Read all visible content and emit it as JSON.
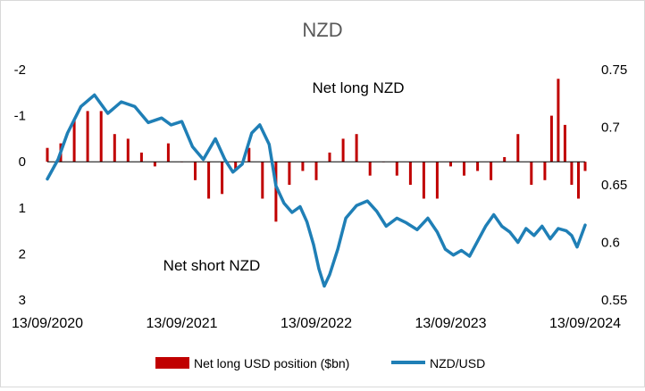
{
  "chart_data": {
    "type": "bar",
    "title": "NZD",
    "colors": {
      "bar": "#c00000",
      "line": "#1f7fb6"
    },
    "left_axis": {
      "ticks": [
        -2,
        -1,
        0,
        1,
        2,
        3
      ],
      "tick_labels": [
        "-2",
        "-1",
        "0",
        "1",
        "2",
        "3"
      ],
      "range": [
        -2.0,
        3.0
      ],
      "inverted": true
    },
    "right_axis": {
      "ticks": [
        0.55,
        0.6,
        0.65,
        0.7,
        0.75
      ],
      "tick_labels": [
        "0.55",
        "0.6",
        "0.65",
        "0.7",
        "0.75"
      ],
      "range": [
        0.55,
        0.75
      ]
    },
    "x_ticks": [
      "13/09/2020",
      "13/09/2021",
      "13/09/2022",
      "13/09/2023",
      "13/09/2024"
    ],
    "x_range": [
      2020.7,
      2024.7
    ],
    "annotations": [
      "Net long NZD",
      "Net short NZD"
    ],
    "legend_position": "bottom",
    "series": [
      {
        "name": "Net long USD position ($bn)",
        "kind": "bar",
        "axis": "left",
        "x": [
          2020.7,
          2020.8,
          2020.9,
          2021.0,
          2021.1,
          2021.2,
          2021.3,
          2021.4,
          2021.5,
          2021.6,
          2021.7,
          2021.8,
          2021.9,
          2022.0,
          2022.1,
          2022.2,
          2022.3,
          2022.4,
          2022.5,
          2022.6,
          2022.7,
          2022.8,
          2022.9,
          2023.0,
          2023.1,
          2023.2,
          2023.3,
          2023.4,
          2023.5,
          2023.6,
          2023.7,
          2023.8,
          2023.9,
          2024.0,
          2024.1,
          2024.2,
          2024.3,
          2024.4,
          2024.45,
          2024.5,
          2024.55,
          2024.6,
          2024.65,
          2024.7
        ],
        "values": [
          -0.3,
          -0.4,
          -0.9,
          -1.1,
          -1.1,
          -0.6,
          -0.5,
          -0.2,
          0.1,
          -0.4,
          0.0,
          0.4,
          0.8,
          0.7,
          0.2,
          -0.3,
          0.8,
          1.3,
          0.5,
          0.2,
          0.4,
          -0.2,
          -0.5,
          -0.6,
          0.3,
          0.0,
          0.3,
          0.5,
          0.8,
          0.8,
          0.1,
          0.3,
          0.2,
          0.4,
          -0.1,
          -0.6,
          0.5,
          0.4,
          -1.0,
          -1.8,
          -0.8,
          0.5,
          0.8,
          0.2
        ]
      },
      {
        "name": "NZD/USD",
        "kind": "line",
        "axis": "right",
        "x": [
          2020.7,
          2020.78,
          2020.85,
          2020.95,
          2021.05,
          2021.15,
          2021.25,
          2021.35,
          2021.45,
          2021.55,
          2021.62,
          2021.7,
          2021.78,
          2021.86,
          2021.95,
          2022.02,
          2022.08,
          2022.15,
          2022.22,
          2022.28,
          2022.35,
          2022.4,
          2022.46,
          2022.52,
          2022.58,
          2022.63,
          2022.68,
          2022.72,
          2022.76,
          2022.8,
          2022.86,
          2022.92,
          2023.0,
          2023.08,
          2023.15,
          2023.22,
          2023.3,
          2023.37,
          2023.45,
          2023.53,
          2023.6,
          2023.66,
          2023.72,
          2023.78,
          2023.84,
          2023.9,
          2023.96,
          2024.02,
          2024.08,
          2024.14,
          2024.2,
          2024.26,
          2024.32,
          2024.38,
          2024.44,
          2024.5,
          2024.56,
          2024.6,
          2024.64,
          2024.7
        ],
        "values": [
          0.655,
          0.672,
          0.695,
          0.718,
          0.728,
          0.712,
          0.722,
          0.718,
          0.704,
          0.708,
          0.702,
          0.705,
          0.683,
          0.672,
          0.69,
          0.672,
          0.661,
          0.668,
          0.695,
          0.702,
          0.685,
          0.649,
          0.634,
          0.626,
          0.631,
          0.618,
          0.598,
          0.577,
          0.562,
          0.572,
          0.594,
          0.621,
          0.632,
          0.636,
          0.627,
          0.614,
          0.621,
          0.617,
          0.611,
          0.621,
          0.609,
          0.594,
          0.589,
          0.593,
          0.588,
          0.601,
          0.614,
          0.624,
          0.614,
          0.609,
          0.6,
          0.612,
          0.606,
          0.614,
          0.603,
          0.612,
          0.61,
          0.606,
          0.596,
          0.615
        ]
      }
    ]
  }
}
